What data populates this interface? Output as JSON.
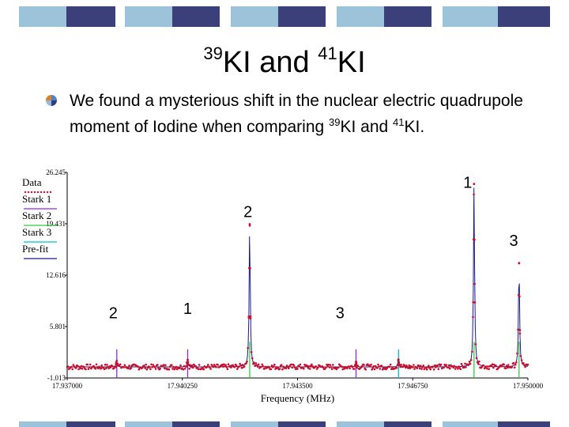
{
  "slide": {
    "title_sup1": "39",
    "title_main1": "KI and ",
    "title_sup2": "41",
    "title_main2": "KI",
    "bullet": {
      "text_part1": "We found a mysterious shift in the nuclear electric quadrupole moment of Iodine when comparing ",
      "sup1": "39",
      "text_part2": "KI and ",
      "sup2": "41",
      "text_part3": "KI."
    },
    "colors": {
      "bar_dark": "#3b3f7a",
      "bar_light": "#9cc3da",
      "bar_white": "#ffffff"
    }
  },
  "chart_data": {
    "type": "line",
    "xlabel": "Frequency (MHz)",
    "ylabel": "",
    "x_ticks": [
      "17.937000",
      "17.940250",
      "17.943500",
      "17.946750",
      "17.950000"
    ],
    "x_range": [
      17.937,
      17.95
    ],
    "y_ticks": [
      "26.245",
      "19.431",
      "12.616",
      "5.801",
      "-1.013"
    ],
    "y_range": [
      -1.013,
      26.245
    ],
    "legend": [
      "Data",
      "Stark 1",
      "Stark 2",
      "Stark 3",
      "Pre-fit"
    ],
    "legend_position": "top-left",
    "series": [
      {
        "name": "Data",
        "color": "#c8102e"
      },
      {
        "name": "Stark 1",
        "color": "#8a2be2"
      },
      {
        "name": "Stark 2",
        "color": "#2ecc40"
      },
      {
        "name": "Stark 3",
        "color": "#00bcd4"
      },
      {
        "name": "Pre-fit",
        "color": "#1a1a8c"
      }
    ],
    "peaks": [
      {
        "x": 17.9384,
        "y": 1.2,
        "series": "Stark 1"
      },
      {
        "x": 17.9404,
        "y": 1.4,
        "series": "Stark 1"
      },
      {
        "x": 17.94215,
        "y": 19.5,
        "series": "Stark 2"
      },
      {
        "x": 17.94515,
        "y": 1.2,
        "series": "Stark 1"
      },
      {
        "x": 17.94635,
        "y": 1.6,
        "series": "Stark 3"
      },
      {
        "x": 17.94848,
        "y": 24.8,
        "series": "Stark 2"
      },
      {
        "x": 17.94975,
        "y": 14.0,
        "series": "Stark 2"
      }
    ],
    "annotations": [
      {
        "text": "1",
        "x": 17.9483,
        "y": 24.2
      },
      {
        "text": "2",
        "x": 17.9421,
        "y": 20.3
      },
      {
        "text": "3",
        "x": 17.9496,
        "y": 16.5
      },
      {
        "text": "2",
        "x": 17.9383,
        "y": 6.9
      },
      {
        "text": "1",
        "x": 17.9404,
        "y": 7.5
      },
      {
        "text": "3",
        "x": 17.9447,
        "y": 6.9
      }
    ]
  }
}
